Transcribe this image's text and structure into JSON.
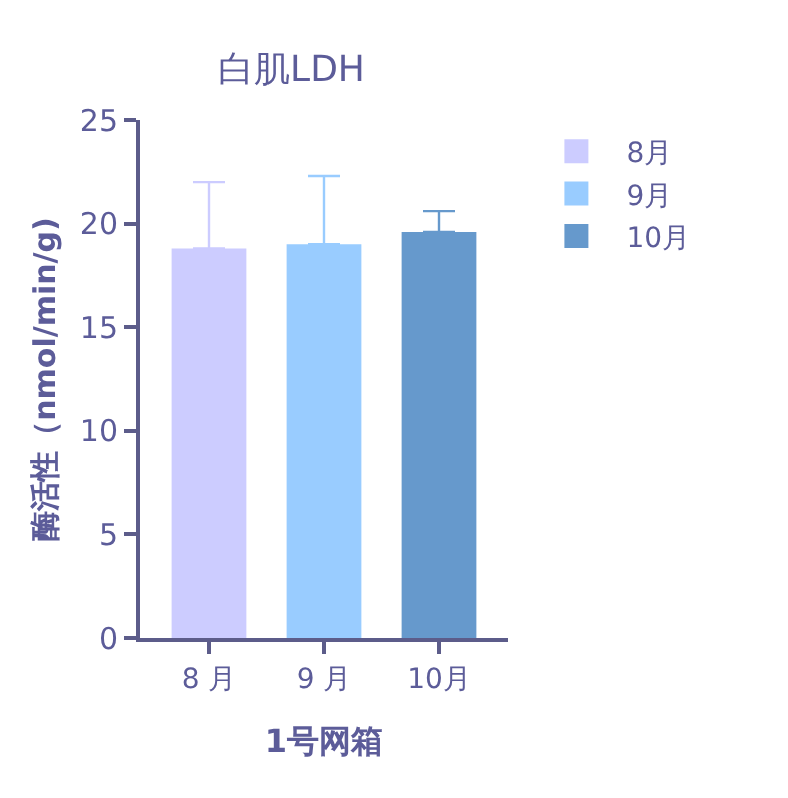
{
  "chart_data": {
    "type": "bar",
    "title": "白肌LDH",
    "xlabel": "1号网箱",
    "ylabel": "酶活性（nmol/min/g)",
    "categories": [
      "8 月",
      "9 月",
      "10月"
    ],
    "series": [
      {
        "name": "8月",
        "color": "#ccccff",
        "values": [
          18.8,
          null,
          null
        ],
        "errors": [
          [
            18.8,
            22.0
          ],
          null,
          null
        ]
      },
      {
        "name": "9月",
        "color": "#99ccff",
        "values": [
          null,
          19.0,
          null
        ],
        "errors": [
          null,
          [
            19.0,
            22.3
          ],
          null
        ]
      },
      {
        "name": "10月",
        "color": "#6699cc",
        "values": [
          null,
          null,
          19.6
        ],
        "errors": [
          null,
          null,
          [
            19.6,
            20.6
          ]
        ]
      }
    ],
    "ylim": [
      0,
      25
    ],
    "yticks": [
      0,
      5,
      10,
      15,
      20,
      25
    ],
    "legend": "top right"
  }
}
